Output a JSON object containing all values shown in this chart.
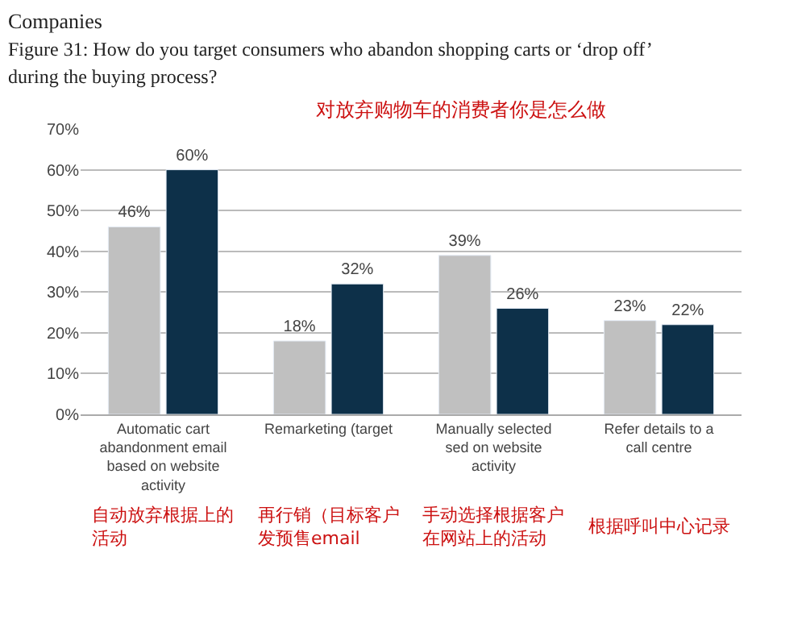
{
  "chart_data": {
    "type": "bar",
    "title": "Companies",
    "subtitle": "Figure 31: How do you target consumers who abandon shopping carts or ‘drop off’ during the buying process?",
    "categories": [
      "Automatic cart abandonment email based on website activity",
      "Remarketing (target",
      "Manually selected sed on website activity",
      "Refer details to a call centre"
    ],
    "series": [
      {
        "color": "#c0c0c0",
        "values": [
          46,
          18,
          39,
          23
        ]
      },
      {
        "color": "#0d3049",
        "values": [
          60,
          32,
          26,
          22
        ]
      }
    ],
    "ylim": [
      0,
      70
    ],
    "yticks": [
      {
        "value": 0,
        "label": "0%"
      },
      {
        "value": 10,
        "label": "10%"
      },
      {
        "value": 20,
        "label": "20%"
      },
      {
        "value": 30,
        "label": "30%"
      },
      {
        "value": 40,
        "label": "40%"
      },
      {
        "value": 50,
        "label": "50%"
      },
      {
        "value": 60,
        "label": "60%"
      },
      {
        "value": 70,
        "label": "70%"
      }
    ],
    "value_labels": [
      [
        "46%",
        "18%",
        "39%",
        "23%"
      ],
      [
        "60%",
        "32%",
        "26%",
        "22%"
      ]
    ],
    "grid": "y",
    "legend": false,
    "annotations": [
      "对放弃购物车的消费者你是怎么做",
      "再行销（目标客户发预售email",
      "手动选择根据客户在网站上的活动",
      "根据呼叫中心记录",
      "自动放弃根据上的活动"
    ]
  }
}
